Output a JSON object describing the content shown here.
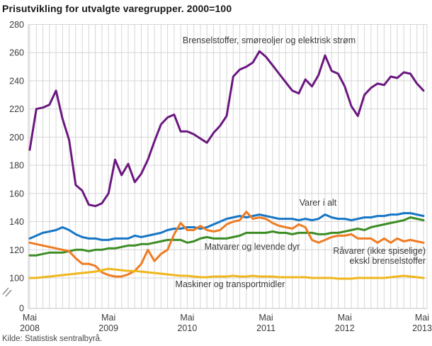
{
  "title": "Prisutvikling for utvalgte varegrupper. 2000=100",
  "source": "Kilde: Statistisk sentralbyrå.",
  "chart_data": {
    "type": "line",
    "title": "Prisutvikling for utvalgte varegrupper. 2000=100",
    "xlabel": "",
    "ylabel": "",
    "x_unit": "month",
    "x_start": "Mai 2008",
    "x_end": "Mai 2013",
    "months_total": 61,
    "grid": true,
    "axis_break": true,
    "ylim_displayed": [
      100,
      280
    ],
    "y_ticks": [
      280,
      260,
      240,
      220,
      200,
      180,
      160,
      140,
      120,
      100
    ],
    "y_break_bottom_label": "0",
    "x_tick_years": [
      {
        "month": "Mai",
        "year": "2008"
      },
      {
        "month": "Mai",
        "year": "2009"
      },
      {
        "month": "Mai",
        "year": "2010"
      },
      {
        "month": "Mai",
        "year": "2011"
      },
      {
        "month": "Mai",
        "year": "2012"
      },
      {
        "month": "Mai",
        "year": "2013"
      }
    ],
    "colors": {
      "grid": "#d6d6d6",
      "axis": "#c4c4c4",
      "tick_text": "#3c3c3c",
      "label_text": "#3a3a3a"
    },
    "series": [
      {
        "name": "Brenselstoffer, smøreoljer og elektrisk strøm",
        "color": "#6b1880",
        "values": [
          191,
          220,
          221,
          223,
          233,
          213,
          198,
          166,
          162,
          152,
          151,
          153,
          160,
          184,
          173,
          181,
          168,
          174,
          184,
          197,
          209,
          214,
          216,
          204,
          204,
          202,
          199,
          196,
          203,
          208,
          215,
          243,
          248,
          250,
          253,
          261,
          257,
          251,
          245,
          239,
          233,
          231,
          241,
          236,
          244,
          258,
          247,
          245,
          236,
          222,
          215,
          230,
          235,
          238,
          237,
          243,
          242,
          246,
          245,
          238,
          233
        ]
      },
      {
        "name": "Varer i alt",
        "color": "#1776c5",
        "values": [
          128,
          130,
          132,
          133,
          134,
          136,
          134,
          131,
          129,
          128,
          128,
          127,
          127,
          128,
          128,
          128,
          130,
          129,
          130,
          131,
          132,
          134,
          135,
          135,
          136,
          136,
          135,
          136,
          138,
          140,
          142,
          143,
          144,
          143,
          144,
          145,
          144,
          143,
          142,
          142,
          142,
          141,
          142,
          141,
          142,
          145,
          143,
          142,
          142,
          141,
          142,
          143,
          143,
          144,
          144,
          145,
          145,
          146,
          146,
          145,
          144
        ]
      },
      {
        "name": "Matvarer og levende dyr",
        "color": "#3d8d25",
        "values": [
          116,
          116,
          117,
          118,
          118,
          118,
          119,
          120,
          120,
          119,
          120,
          120,
          121,
          121,
          122,
          123,
          123,
          124,
          124,
          125,
          126,
          127,
          127,
          127,
          125,
          126,
          128,
          129,
          128,
          128,
          128,
          129,
          130,
          132,
          132,
          132,
          132,
          133,
          132,
          132,
          131,
          132,
          132,
          132,
          131,
          131,
          132,
          132,
          133,
          134,
          135,
          134,
          136,
          137,
          138,
          139,
          140,
          141,
          143,
          142,
          141
        ]
      },
      {
        "name": "Råvarer (ikke spiselige) ekskl brenselstoffer",
        "label_lines": [
          "Råvarer (ikke spiselige)",
          "ekskl brenselstoffer"
        ],
        "color": "#ef7c23",
        "values": [
          125,
          124,
          123,
          122,
          121,
          120,
          119,
          114,
          110,
          110,
          108.5,
          104,
          102,
          101,
          101,
          102.5,
          105,
          110,
          120,
          112,
          117,
          120,
          131,
          139,
          134,
          134,
          137,
          134,
          133,
          134,
          138,
          140,
          141,
          147,
          142,
          143,
          142,
          139,
          137,
          136,
          135,
          138,
          136,
          127,
          125,
          127,
          129,
          130,
          130,
          131,
          128,
          128,
          128,
          125,
          128,
          125,
          128,
          126,
          127,
          126,
          125
        ]
      },
      {
        "name": "Maskiner og transportmidler",
        "color": "#f0b61c",
        "values": [
          100,
          100,
          100.5,
          101,
          101.5,
          102,
          102.5,
          103,
          103.5,
          104,
          104.5,
          105.5,
          106.5,
          106,
          105.5,
          105,
          105,
          104.5,
          104,
          103.5,
          103,
          102.5,
          102,
          101.5,
          101.5,
          101,
          100.5,
          100.5,
          101,
          101,
          101,
          101.5,
          101,
          101,
          101.5,
          101,
          101,
          101,
          100.5,
          100.5,
          100.5,
          100.5,
          100.5,
          100,
          100,
          100,
          100,
          99.5,
          99.5,
          99.5,
          100,
          100,
          100,
          100,
          100,
          100.5,
          101,
          101.5,
          101,
          100.5,
          100
        ]
      }
    ]
  }
}
